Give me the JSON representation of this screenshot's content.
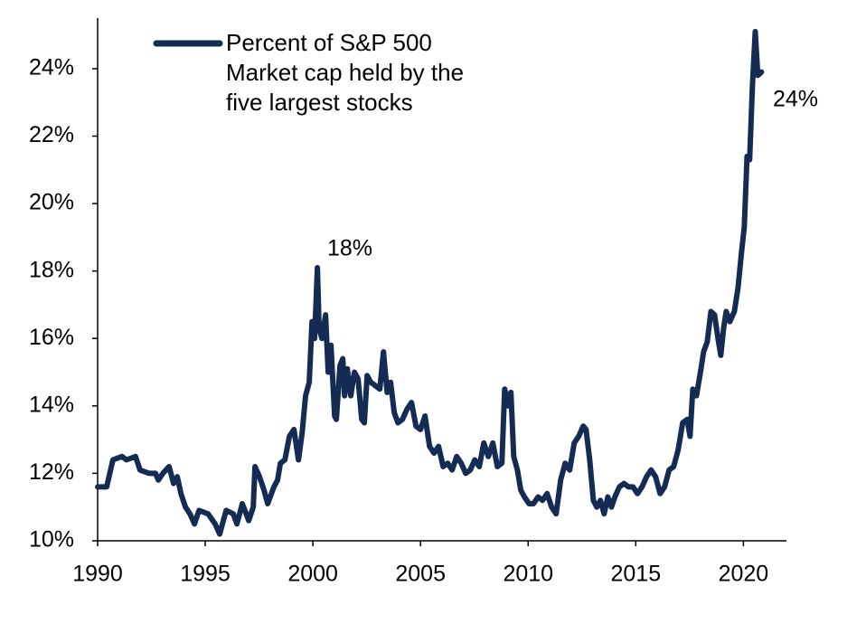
{
  "chart_data": {
    "type": "line",
    "series": [
      {
        "name": "Percent of S&P 500 Market cap held by the five largest stocks",
        "color": "#142c54",
        "x": [
          1990.0,
          1990.42,
          1990.71,
          1991.13,
          1991.34,
          1991.76,
          1991.97,
          1992.39,
          1992.69,
          1992.82,
          1993.03,
          1993.32,
          1993.53,
          1993.7,
          1993.87,
          1994.08,
          1994.29,
          1994.5,
          1994.71,
          1995.13,
          1995.46,
          1995.67,
          1995.97,
          1996.3,
          1996.47,
          1996.72,
          1997.02,
          1997.23,
          1997.31,
          1997.52,
          1997.73,
          1997.9,
          1998.19,
          1998.36,
          1998.49,
          1998.7,
          1998.91,
          1999.12,
          1999.33,
          1999.5,
          1999.66,
          1999.83,
          1999.96,
          2000.08,
          2000.21,
          2000.29,
          2000.42,
          2000.59,
          2000.71,
          2000.84,
          2001.01,
          2001.09,
          2001.26,
          2001.39,
          2001.47,
          2001.6,
          2001.76,
          2001.93,
          2002.1,
          2002.27,
          2002.39,
          2002.52,
          2002.69,
          2002.9,
          2003.11,
          2003.28,
          2003.45,
          2003.61,
          2003.78,
          2003.95,
          2004.16,
          2004.37,
          2004.58,
          2004.79,
          2005.0,
          2005.21,
          2005.42,
          2005.63,
          2005.84,
          2006.05,
          2006.26,
          2006.47,
          2006.68,
          2006.89,
          2007.1,
          2007.31,
          2007.52,
          2007.73,
          2007.94,
          2008.15,
          2008.36,
          2008.57,
          2008.78,
          2008.91,
          2009.08,
          2009.2,
          2009.33,
          2009.5,
          2009.66,
          2009.83,
          2010.04,
          2010.25,
          2010.46,
          2010.67,
          2010.88,
          2011.09,
          2011.3,
          2011.51,
          2011.72,
          2011.93,
          2012.14,
          2012.35,
          2012.56,
          2012.69,
          2012.86,
          2013.03,
          2013.19,
          2013.36,
          2013.53,
          2013.7,
          2013.87,
          2014.03,
          2014.24,
          2014.45,
          2014.66,
          2014.87,
          2015.08,
          2015.29,
          2015.5,
          2015.71,
          2015.92,
          2016.13,
          2016.34,
          2016.55,
          2016.76,
          2016.97,
          2017.18,
          2017.39,
          2017.52,
          2017.65,
          2017.82,
          2018.03,
          2018.15,
          2018.32,
          2018.49,
          2018.66,
          2018.82,
          2018.95,
          2019.08,
          2019.2,
          2019.37,
          2019.58,
          2019.75,
          2019.92,
          2020.04,
          2020.17,
          2020.29,
          2020.42,
          2020.55,
          2020.67,
          2020.84
        ],
        "values": [
          11.6,
          11.6,
          12.4,
          12.5,
          12.4,
          12.5,
          12.1,
          12.0,
          12.0,
          11.8,
          12.0,
          12.2,
          11.7,
          11.9,
          11.4,
          11.0,
          10.8,
          10.5,
          10.9,
          10.8,
          10.5,
          10.2,
          10.9,
          10.8,
          10.5,
          11.1,
          10.6,
          11.0,
          12.2,
          11.9,
          11.5,
          11.1,
          11.6,
          11.8,
          12.3,
          12.4,
          13.1,
          13.3,
          12.4,
          13.2,
          14.3,
          14.7,
          16.5,
          16.0,
          18.1,
          16.3,
          16.0,
          16.7,
          15.0,
          15.8,
          13.7,
          13.6,
          15.2,
          15.4,
          14.3,
          15.1,
          14.3,
          15.0,
          14.8,
          13.6,
          13.5,
          14.9,
          14.7,
          14.6,
          14.5,
          15.6,
          14.4,
          14.7,
          13.8,
          13.5,
          13.6,
          13.9,
          14.1,
          13.4,
          13.3,
          13.7,
          12.8,
          12.6,
          12.8,
          12.2,
          12.3,
          12.1,
          12.5,
          12.3,
          12.0,
          12.1,
          12.4,
          12.2,
          12.9,
          12.5,
          12.9,
          12.2,
          12.3,
          14.5,
          14.0,
          14.4,
          12.5,
          12.1,
          11.5,
          11.3,
          11.1,
          11.1,
          11.3,
          11.2,
          11.4,
          11.0,
          10.8,
          11.8,
          12.3,
          12.1,
          12.9,
          13.1,
          13.4,
          13.3,
          12.4,
          11.2,
          11.0,
          11.2,
          10.8,
          11.3,
          11.0,
          11.3,
          11.6,
          11.7,
          11.6,
          11.6,
          11.4,
          11.6,
          11.9,
          12.1,
          11.9,
          11.4,
          11.6,
          12.1,
          12.2,
          12.7,
          13.5,
          13.6,
          13.1,
          14.5,
          14.3,
          15.1,
          15.6,
          15.9,
          16.8,
          16.7,
          16.0,
          15.5,
          16.3,
          16.8,
          16.5,
          16.8,
          17.5,
          18.6,
          19.3,
          21.4,
          21.3,
          23.5,
          25.1,
          23.8,
          23.9
        ]
      }
    ],
    "annotations": [
      "18%",
      "24%"
    ],
    "xlim": [
      1990,
      2022
    ],
    "xticks": [
      1990,
      1995,
      2000,
      2005,
      2010,
      2015,
      2020
    ],
    "ylim": [
      10,
      25.5
    ],
    "yticks": [
      {
        "value": 10,
        "label": "10%"
      },
      {
        "value": 12,
        "label": "12%"
      },
      {
        "value": 14,
        "label": "14%"
      },
      {
        "value": 16,
        "label": "16%"
      },
      {
        "value": 18,
        "label": "18%"
      },
      {
        "value": 20,
        "label": "20%"
      },
      {
        "value": 22,
        "label": "22%"
      },
      {
        "value": 24,
        "label": "24%"
      }
    ],
    "grid": false
  }
}
